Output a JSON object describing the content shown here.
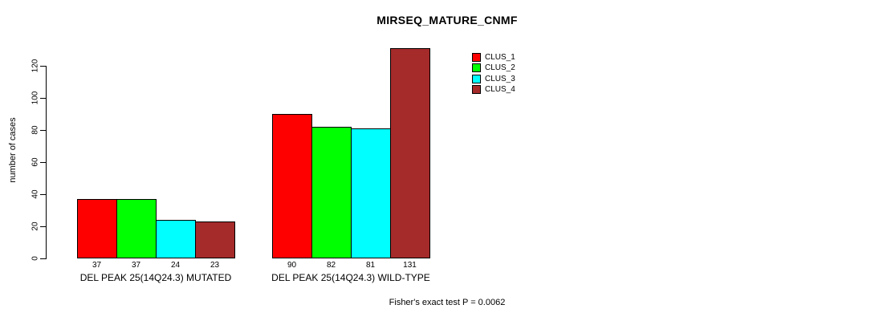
{
  "chart_data": {
    "type": "bar",
    "title": "MIRSEQ_MATURE_CNMF",
    "xlabel": "",
    "ylabel": "number of cases",
    "ylim": [
      0,
      120
    ],
    "yticks": [
      0,
      20,
      40,
      60,
      80,
      100,
      120
    ],
    "grid": false,
    "legend_position": "top-right",
    "categories": [
      "DEL PEAK 25(14Q24.3) MUTATED",
      "DEL PEAK 25(14Q24.3) WILD-TYPE"
    ],
    "series": [
      {
        "name": "CLUS_1",
        "color": "#FF0000",
        "values": [
          37,
          90
        ]
      },
      {
        "name": "CLUS_2",
        "color": "#00FF00",
        "values": [
          37,
          82
        ]
      },
      {
        "name": "CLUS_3",
        "color": "#00FFFF",
        "values": [
          24,
          81
        ]
      },
      {
        "name": "CLUS_4",
        "color": "#A52A2A",
        "values": [
          23,
          131
        ]
      }
    ],
    "bar_value_labels": [
      [
        37,
        37,
        24,
        23
      ],
      [
        90,
        82,
        81,
        131
      ]
    ],
    "annotation": "Fisher's exact test P = 0.0062"
  }
}
